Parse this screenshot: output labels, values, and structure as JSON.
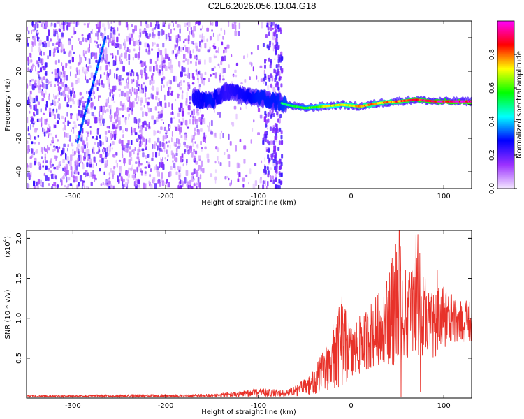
{
  "title": "C2E6.2026.056.13.04.G18",
  "chart_data": [
    {
      "type": "heatmap",
      "xlabel": "Height of straight line (km)",
      "ylabel": "Frequency (Hz)",
      "xlim": [
        -350,
        130
      ],
      "ylim": [
        -50,
        50
      ],
      "x_ticks": [
        -300,
        -200,
        -100,
        0,
        100
      ],
      "y_ticks": [
        -40,
        -20,
        0,
        20,
        40
      ],
      "colorbar": {
        "label": "Normalized spectral amplitude",
        "range": [
          0,
          1
        ],
        "ticks": [
          "0.0",
          "0.2",
          "0.4",
          "0.6",
          "0.8"
        ],
        "colors": [
          "#f3e6ff",
          "#9b30ff",
          "#0000ff",
          "#00ffff",
          "#00ff00",
          "#ffff00",
          "#ff0000",
          "#ff00ff"
        ]
      },
      "noise_region": {
        "x_range": [
          -350,
          -75
        ],
        "freq_range": [
          -50,
          50
        ]
      },
      "signal_track": [
        {
          "x": -170,
          "f": 4,
          "amp": 0.45
        },
        {
          "x": -150,
          "f": 2,
          "amp": 0.5
        },
        {
          "x": -135,
          "f": 8,
          "amp": 0.4
        },
        {
          "x": -120,
          "f": 6,
          "amp": 0.45
        },
        {
          "x": -100,
          "f": 4,
          "amp": 0.5
        },
        {
          "x": -80,
          "f": 2,
          "amp": 0.5
        },
        {
          "x": -70,
          "f": 0,
          "amp": 0.55
        },
        {
          "x": -50,
          "f": -2,
          "amp": 0.6
        },
        {
          "x": -30,
          "f": -1,
          "amp": 0.7
        },
        {
          "x": -10,
          "f": 0,
          "amp": 0.75
        },
        {
          "x": 10,
          "f": -1,
          "amp": 0.8
        },
        {
          "x": 30,
          "f": 1,
          "amp": 0.8
        },
        {
          "x": 50,
          "f": 2,
          "amp": 0.85
        },
        {
          "x": 70,
          "f": 3,
          "amp": 0.9
        },
        {
          "x": 90,
          "f": 2,
          "amp": 0.95
        },
        {
          "x": 130,
          "f": 2,
          "amp": 1.0
        }
      ],
      "diagonal_track": [
        {
          "x": -295,
          "f": -22
        },
        {
          "x": -265,
          "f": 40
        }
      ]
    },
    {
      "type": "line",
      "xlabel": "Height of straight line (km)",
      "ylabel": "SNR (10 * v/v)",
      "y_multiplier": "(x10",
      "y_multiplier_exp": "4",
      "xlim": [
        -350,
        130
      ],
      "ylim": [
        0,
        2.1
      ],
      "x_ticks": [
        -300,
        -200,
        -100,
        0,
        100
      ],
      "y_ticks": [
        "0.5",
        "1.0",
        "1.5",
        "2.0"
      ],
      "line_color": "#e8322a",
      "envelope": [
        {
          "x": -350,
          "min": 0.01,
          "max": 0.04
        },
        {
          "x": -150,
          "min": 0.01,
          "max": 0.05
        },
        {
          "x": -100,
          "min": 0.02,
          "max": 0.12
        },
        {
          "x": -70,
          "min": 0.02,
          "max": 0.1
        },
        {
          "x": -55,
          "min": 0.03,
          "max": 0.2
        },
        {
          "x": -40,
          "min": 0.05,
          "max": 0.35
        },
        {
          "x": -25,
          "min": 0.1,
          "max": 0.75
        },
        {
          "x": -10,
          "min": 0.15,
          "max": 1.25
        },
        {
          "x": 0,
          "min": 0.25,
          "max": 0.9
        },
        {
          "x": 15,
          "min": 0.35,
          "max": 1.1
        },
        {
          "x": 35,
          "min": 0.45,
          "max": 1.4
        },
        {
          "x": 50,
          "min": 0.4,
          "max": 2.1
        },
        {
          "x": 60,
          "min": 0.5,
          "max": 1.55
        },
        {
          "x": 70,
          "min": 0.55,
          "max": 2.05
        },
        {
          "x": 85,
          "min": 0.45,
          "max": 1.35
        },
        {
          "x": 100,
          "min": 0.6,
          "max": 1.4
        },
        {
          "x": 115,
          "min": 0.7,
          "max": 1.25
        },
        {
          "x": 130,
          "min": 0.7,
          "max": 1.2
        }
      ],
      "spikes": [
        {
          "x": -10,
          "y": 1.27
        },
        {
          "x": 52,
          "y": 2.1
        },
        {
          "x": 54,
          "y": 0.02
        },
        {
          "x": 72,
          "y": 2.05
        },
        {
          "x": 75,
          "y": 0.08
        },
        {
          "x": 93,
          "y": 1.6
        }
      ]
    }
  ]
}
